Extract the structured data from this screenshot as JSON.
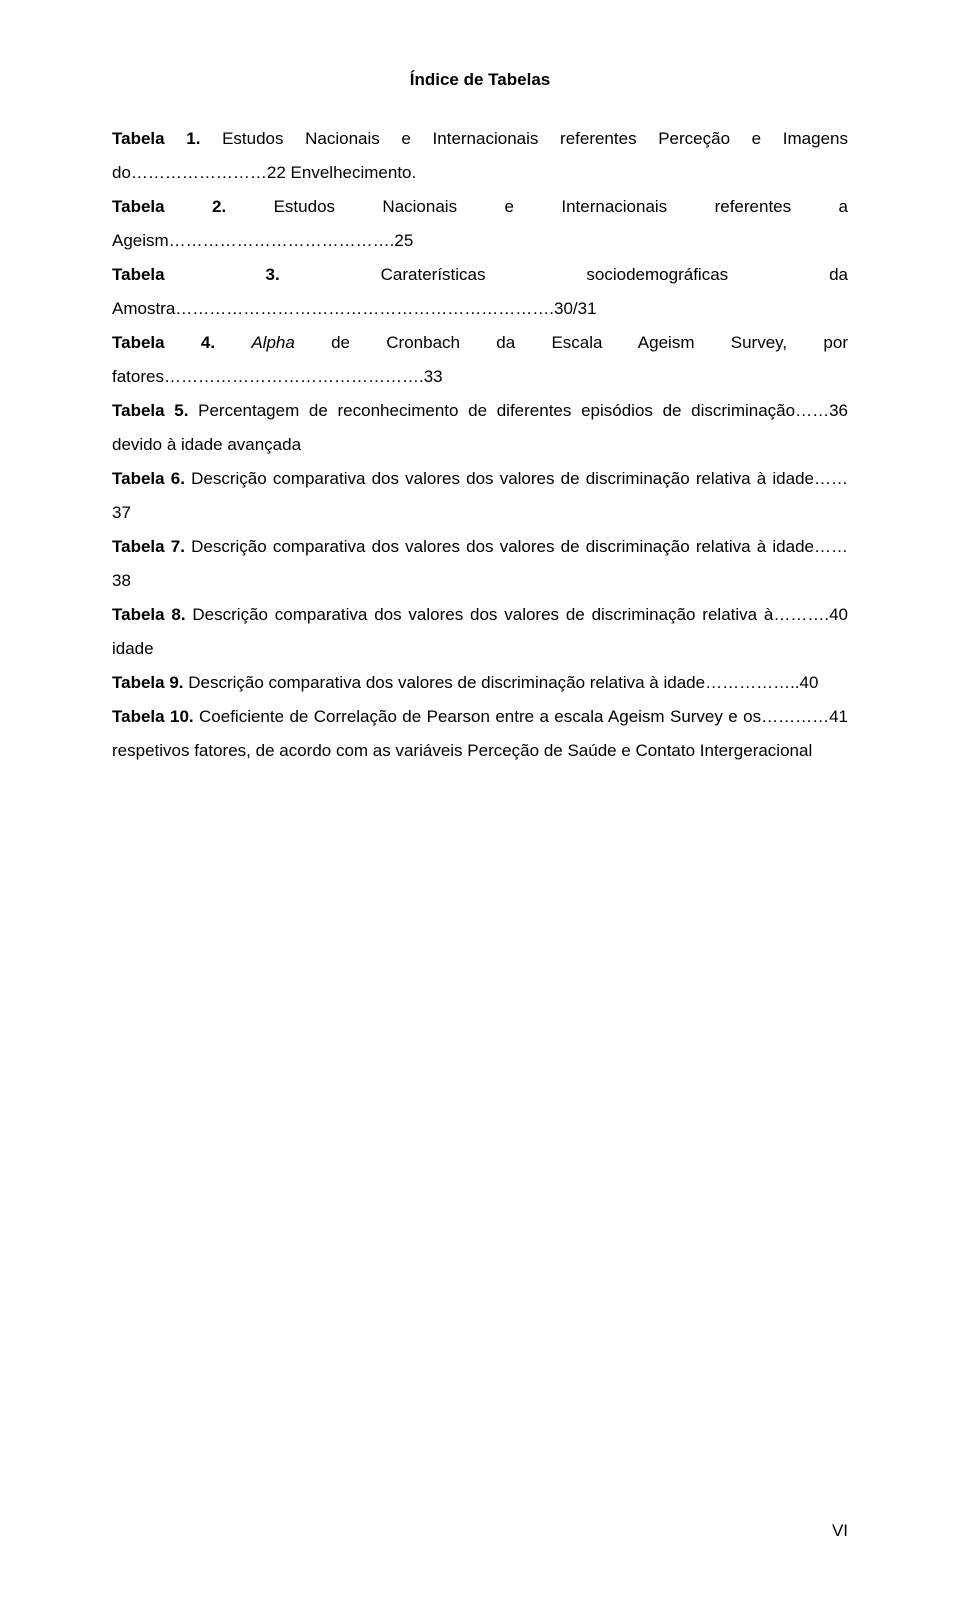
{
  "title": "Índice de Tabelas",
  "page_number": "VI",
  "entries": [
    {
      "label": "Tabela 1.",
      "text_a": " Estudos Nacionais e Internacionais referentes Perceção e Imagens do……………………22 Envelhecimento."
    },
    {
      "label": "Tabela 2.",
      "text_a": " Estudos Nacionais e Internacionais referentes a Ageism………………………………….25"
    },
    {
      "label": "Tabela 3.",
      "text_a": " Caraterísticas sociodemográficas da Amostra………………………………………………………….30/31"
    },
    {
      "label": "Tabela 4.",
      "text_a": " ",
      "italic": "Alpha",
      "text_b": " de Cronbach da Escala Ageism Survey, por fatores……………………………………….33"
    },
    {
      "label": "Tabela 5.",
      "text_a": " Percentagem de reconhecimento de diferentes episódios de discriminação……36 devido à idade avançada"
    },
    {
      "label": "Tabela 6.",
      "text_a": " Descrição comparativa dos valores dos valores de discriminação relativa à idade……37"
    },
    {
      "label": "Tabela 7.",
      "text_a": " Descrição comparativa dos valores dos valores de discriminação relativa à idade……38"
    },
    {
      "label": "Tabela 8.",
      "text_a": " Descrição comparativa dos valores dos valores de discriminação relativa à……….40 idade"
    },
    {
      "label": "Tabela 9.",
      "text_a": " Descrição comparativa dos valores de discriminação relativa à idade……………..40"
    },
    {
      "label": "Tabela 10.",
      "text_a": " Coeficiente de Correlação de Pearson entre a escala Ageism Survey e os…………41 respetivos fatores, de acordo com as variáveis Perceção de Saúde e Contato Intergeracional"
    }
  ]
}
